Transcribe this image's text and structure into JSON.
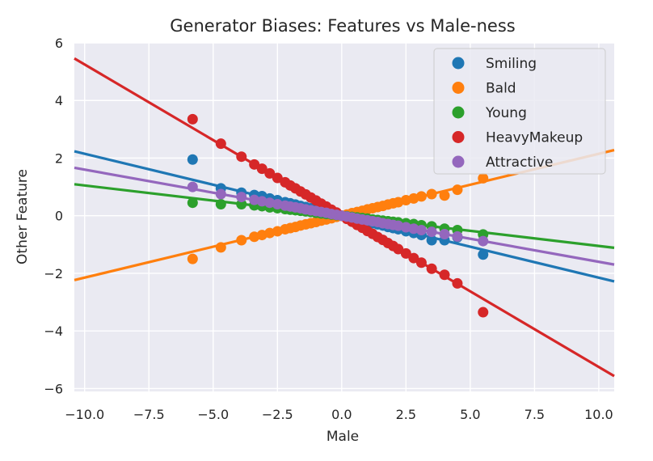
{
  "chart_data": {
    "type": "scatter",
    "title": "Generator Biases: Features vs Male-ness",
    "xlabel": "Male",
    "ylabel": "Other Feature",
    "xlim": [
      -10.4,
      10.6
    ],
    "ylim": [
      -6.1,
      6.0
    ],
    "xticks": [
      -10.0,
      -7.5,
      -5.0,
      -2.5,
      0.0,
      2.5,
      5.0,
      7.5,
      10.0
    ],
    "xtick_labels": [
      "−10.0",
      "−7.5",
      "−5.0",
      "−2.5",
      "0.0",
      "2.5",
      "5.0",
      "7.5",
      "10.0"
    ],
    "yticks": [
      -6,
      -4,
      -2,
      0,
      2,
      4,
      6
    ],
    "ytick_labels": [
      "−6",
      "−4",
      "−2",
      "0",
      "2",
      "4",
      "6"
    ],
    "grid": true,
    "legend_position": "top-right",
    "x": [
      -5.8,
      -4.7,
      -3.9,
      -3.4,
      -3.1,
      -2.8,
      -2.5,
      -2.2,
      -2.0,
      -1.8,
      -1.6,
      -1.4,
      -1.2,
      -1.0,
      -0.8,
      -0.6,
      -0.4,
      -0.2,
      0.0,
      0.2,
      0.4,
      0.6,
      0.8,
      1.0,
      1.2,
      1.4,
      1.6,
      1.8,
      2.0,
      2.2,
      2.5,
      2.8,
      3.1,
      3.5,
      4.0,
      4.5,
      5.5
    ],
    "series": [
      {
        "name": "Smiling",
        "color": "#1f77b4",
        "slope": -0.215,
        "intercept": 0.0,
        "y": [
          1.95,
          0.95,
          0.8,
          0.72,
          0.68,
          0.6,
          0.54,
          0.47,
          0.43,
          0.39,
          0.34,
          0.3,
          0.26,
          0.22,
          0.17,
          0.13,
          0.09,
          0.04,
          0.0,
          -0.04,
          -0.09,
          -0.13,
          -0.17,
          -0.22,
          -0.26,
          -0.3,
          -0.34,
          -0.39,
          -0.43,
          -0.47,
          -0.54,
          -0.6,
          -0.67,
          -0.85,
          -0.85,
          -0.75,
          -1.35
        ]
      },
      {
        "name": "Bald",
        "color": "#ff7f0e",
        "slope": 0.215,
        "intercept": 0.0,
        "y": [
          -1.5,
          -1.1,
          -0.85,
          -0.73,
          -0.67,
          -0.6,
          -0.54,
          -0.47,
          -0.43,
          -0.39,
          -0.34,
          -0.3,
          -0.26,
          -0.22,
          -0.17,
          -0.13,
          -0.09,
          -0.04,
          0.0,
          0.04,
          0.09,
          0.13,
          0.17,
          0.22,
          0.26,
          0.3,
          0.34,
          0.39,
          0.43,
          0.47,
          0.54,
          0.6,
          0.67,
          0.75,
          0.7,
          0.9,
          1.3
        ]
      },
      {
        "name": "Young",
        "color": "#2ca02c",
        "slope": -0.105,
        "intercept": 0.0,
        "y": [
          0.45,
          0.4,
          0.4,
          0.36,
          0.33,
          0.29,
          0.26,
          0.23,
          0.21,
          0.19,
          0.17,
          0.15,
          0.13,
          0.1,
          0.08,
          0.06,
          0.04,
          0.02,
          0.0,
          -0.02,
          -0.04,
          -0.06,
          -0.08,
          -0.1,
          -0.13,
          -0.15,
          -0.17,
          -0.19,
          -0.21,
          -0.23,
          -0.26,
          -0.29,
          -0.33,
          -0.37,
          -0.45,
          -0.5,
          -0.65
        ]
      },
      {
        "name": "HeavyMakeup",
        "color": "#d62728",
        "slope": -0.525,
        "intercept": 0.0,
        "y": [
          3.35,
          2.5,
          2.05,
          1.78,
          1.63,
          1.47,
          1.31,
          1.16,
          1.05,
          0.95,
          0.84,
          0.74,
          0.63,
          0.53,
          0.42,
          0.32,
          0.21,
          0.11,
          0.0,
          -0.11,
          -0.21,
          -0.32,
          -0.42,
          -0.53,
          -0.63,
          -0.74,
          -0.84,
          -0.95,
          -1.05,
          -1.16,
          -1.31,
          -1.47,
          -1.63,
          -1.84,
          -2.05,
          -2.35,
          -3.35
        ]
      },
      {
        "name": "Attractive",
        "color": "#9467bd",
        "slope": -0.16,
        "intercept": 0.0,
        "y": [
          1.0,
          0.75,
          0.65,
          0.55,
          0.5,
          0.45,
          0.4,
          0.35,
          0.32,
          0.29,
          0.26,
          0.22,
          0.19,
          0.16,
          0.13,
          0.1,
          0.06,
          0.03,
          0.0,
          -0.03,
          -0.06,
          -0.1,
          -0.13,
          -0.16,
          -0.19,
          -0.22,
          -0.26,
          -0.29,
          -0.32,
          -0.35,
          -0.4,
          -0.45,
          -0.5,
          -0.56,
          -0.64,
          -0.72,
          -0.88
        ]
      }
    ]
  }
}
